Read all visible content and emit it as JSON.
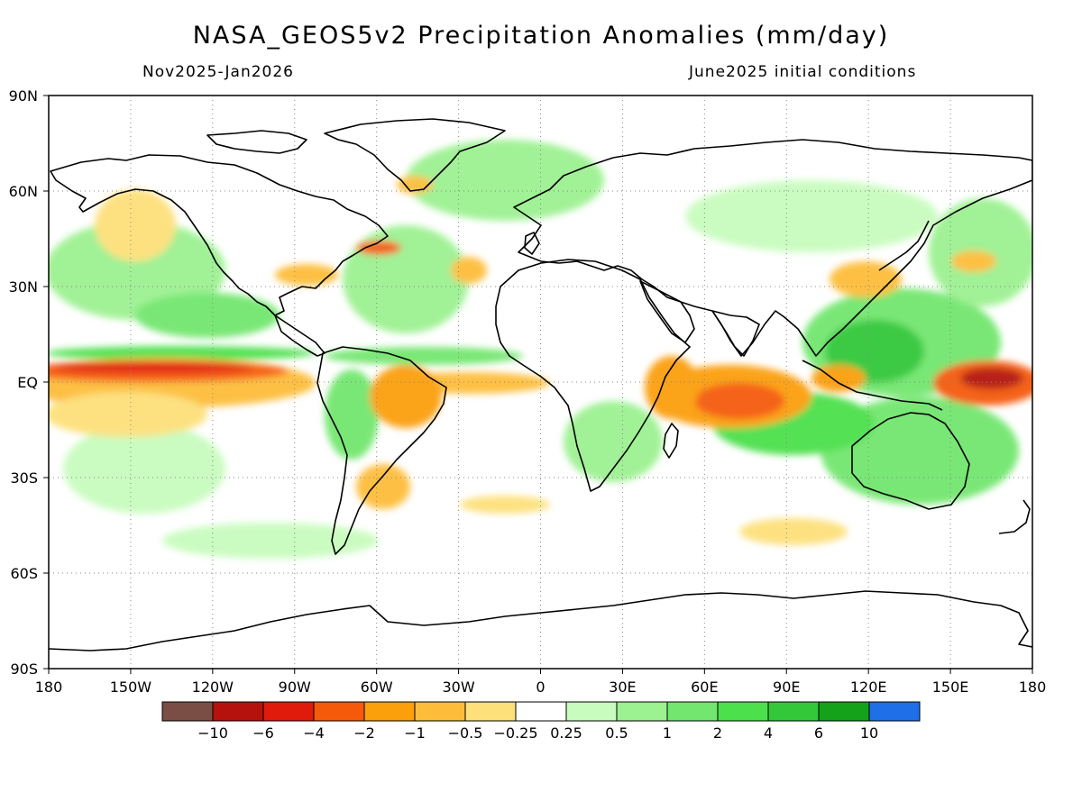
{
  "map": {
    "title": "NASA_GEOS5v2 Precipitation Anomalies (mm/day)",
    "period": "Nov2025-Jan2026",
    "initial_conditions": "June2025 initial conditions",
    "lat_labels": [
      "90N",
      "60N",
      "30N",
      "EQ",
      "30S",
      "60S",
      "90S"
    ],
    "lon_labels": [
      "180",
      "150W",
      "120W",
      "90W",
      "60W",
      "30W",
      "0",
      "30E",
      "60E",
      "90E",
      "120E",
      "150E",
      "180"
    ],
    "colorbar": {
      "colors": [
        "#7a4e44",
        "#b5120e",
        "#e01b0c",
        "#f55a0b",
        "#fb9f0b",
        "#fdbd3b",
        "#fde07a",
        "#ffffff",
        "#c8fcbe",
        "#9cf191",
        "#72e66e",
        "#4be04c",
        "#33c83a",
        "#14a21a",
        "#1e6fe8"
      ],
      "labels": [
        "-10",
        "-6",
        "-4",
        "-2",
        "-1",
        "-0.5",
        "-0.25",
        "0.25",
        "0.5",
        "1",
        "2",
        "4",
        "6",
        "10"
      ]
    }
  }
}
